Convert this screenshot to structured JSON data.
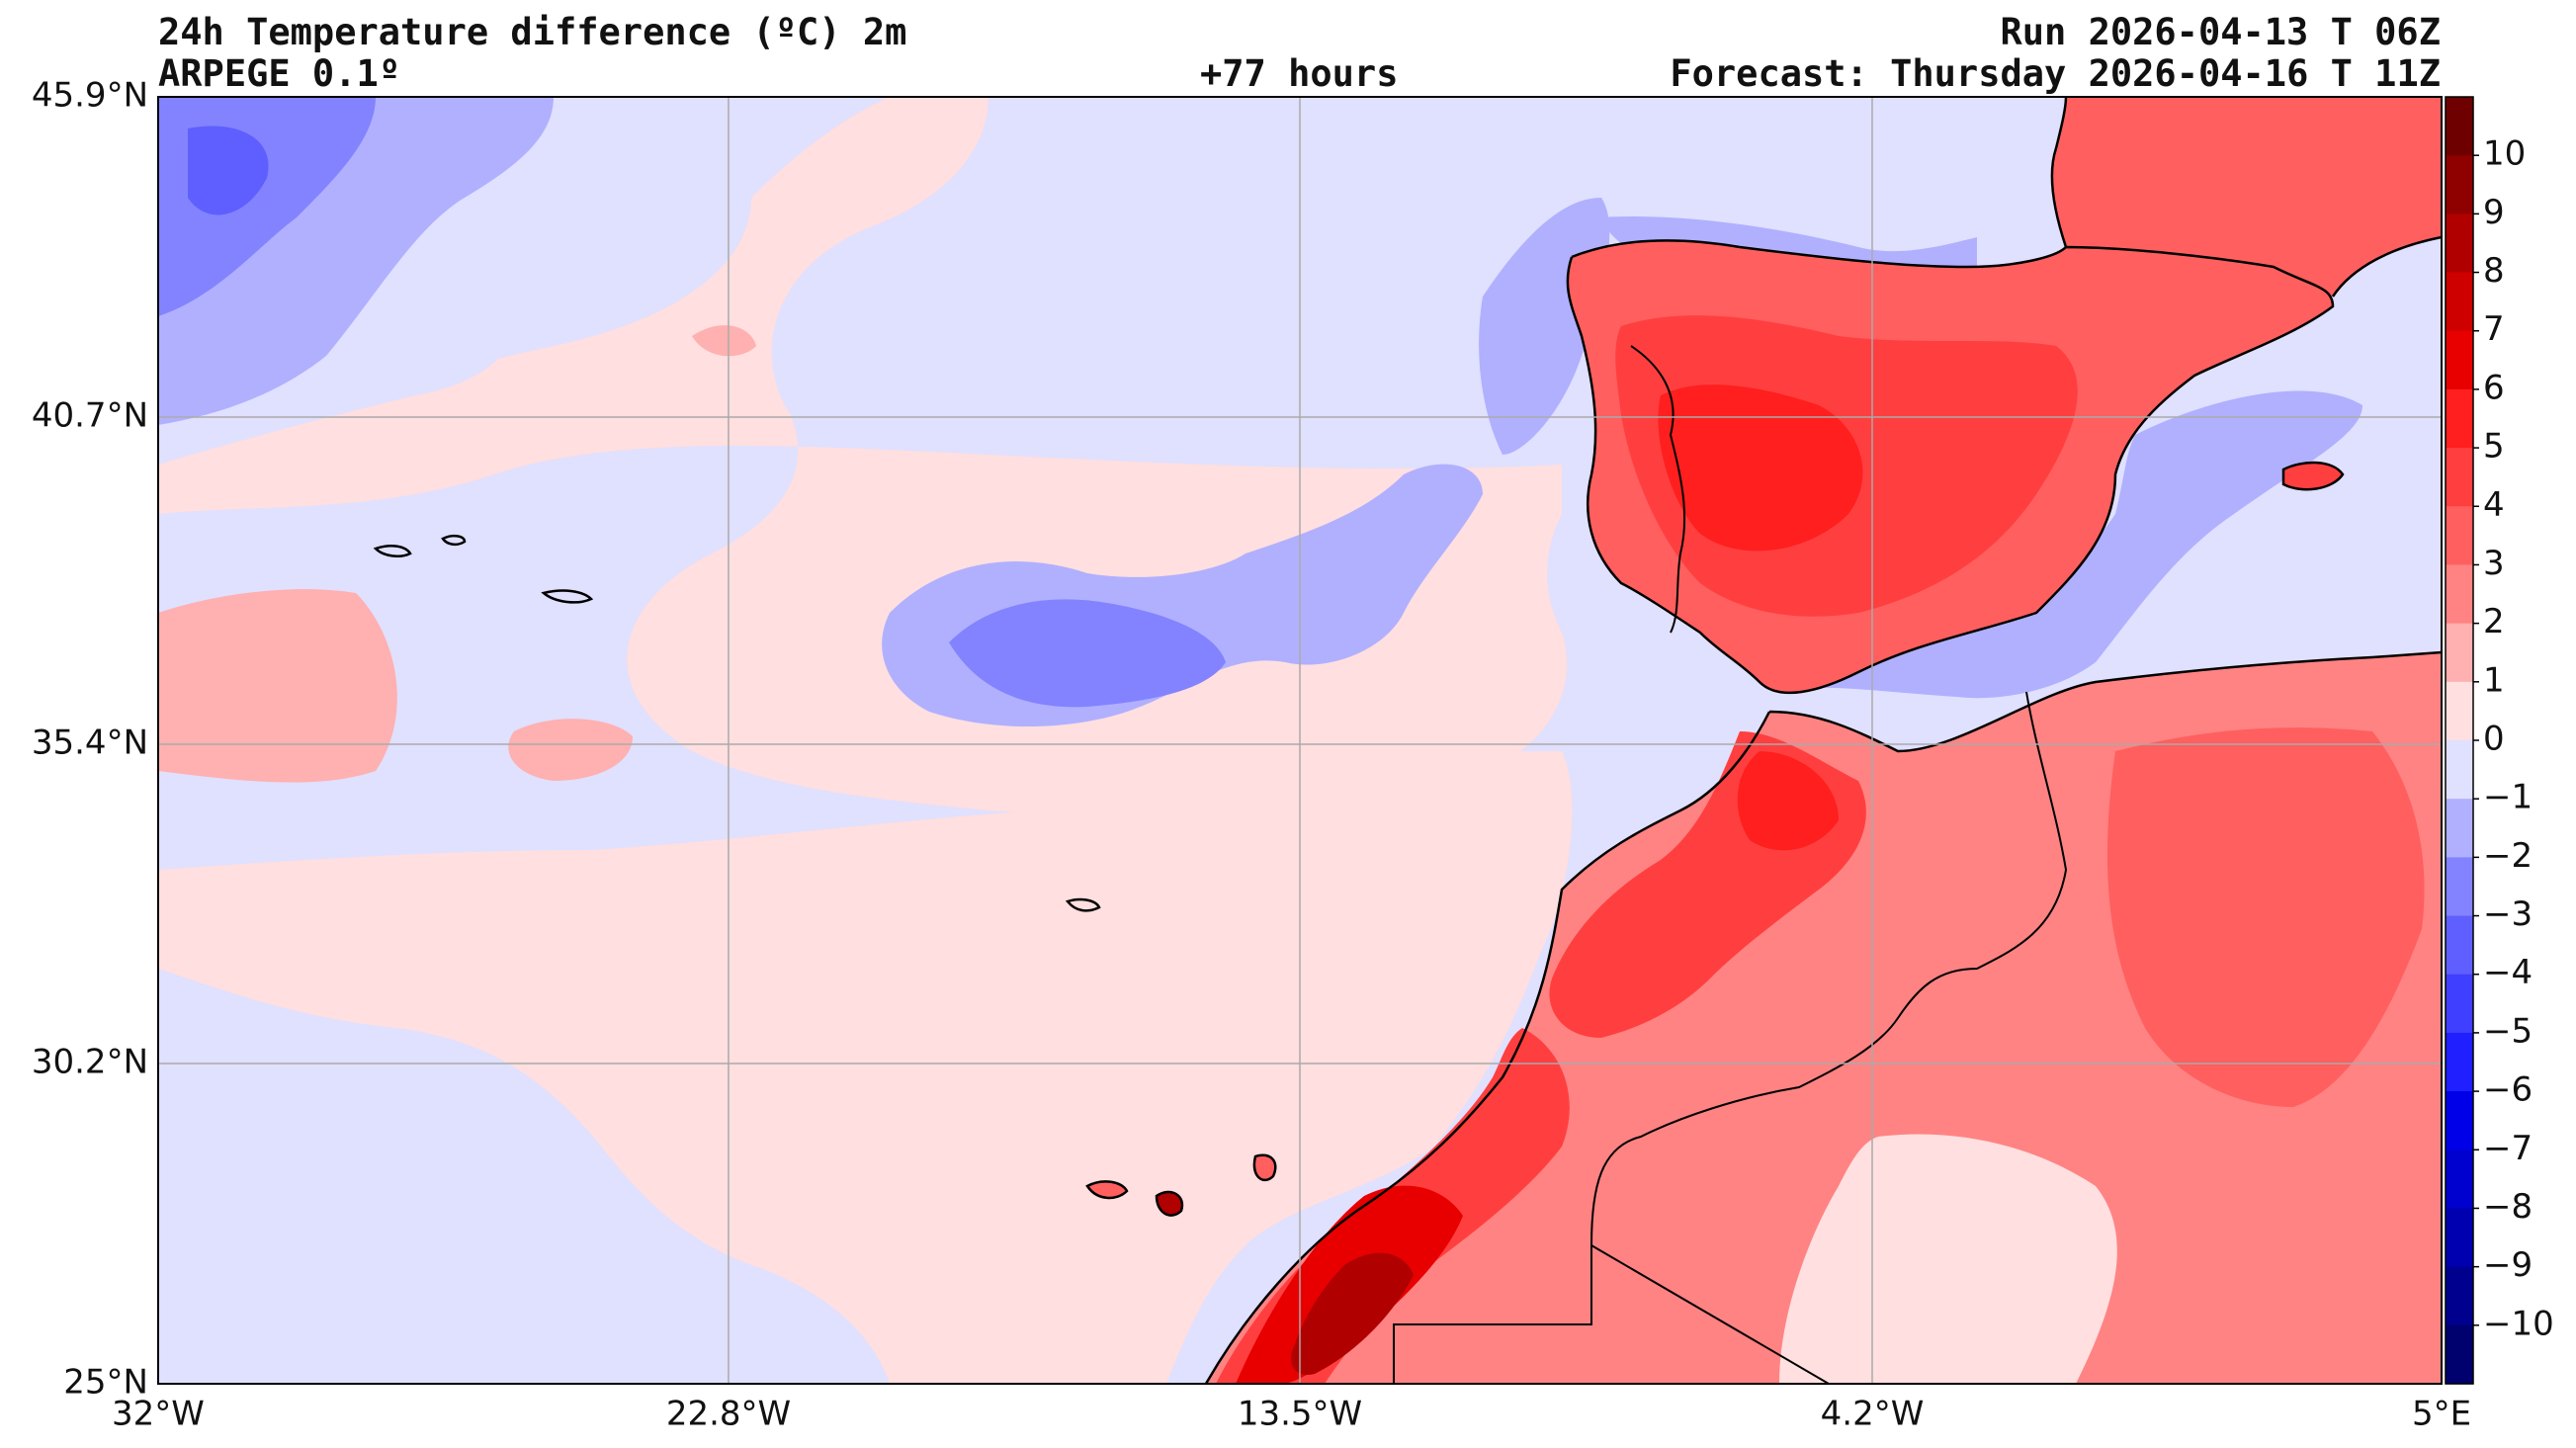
{
  "header": {
    "title": "24h Temperature difference (ºC) 2m",
    "model": "ARPEGE 0.1º",
    "lead_time": "+77 hours",
    "run": "Run 2026-04-13 T 06Z",
    "forecast": "Forecast: Thursday 2026-04-16 T 11Z"
  },
  "axes": {
    "lat_labels": [
      "45.9°N",
      "40.7°N",
      "35.4°N",
      "30.2°N",
      "25°N"
    ],
    "lon_labels": [
      "32°W",
      "22.8°W",
      "13.5°W",
      "4.2°W",
      "5°E"
    ]
  },
  "colorbar": {
    "labels": [
      "10",
      "9",
      "8",
      "7",
      "6",
      "5",
      "4",
      "3",
      "2",
      "1",
      "0",
      "−1",
      "−2",
      "−3",
      "−4",
      "−5",
      "−6",
      "−7",
      "−8",
      "−9",
      "−10"
    ],
    "colors": [
      "#6e0000",
      "#8f0000",
      "#b00000",
      "#cf0000",
      "#e80000",
      "#ff1f1f",
      "#ff3f3f",
      "#ff5f5f",
      "#ff8383",
      "#ffb0b0",
      "#ffdfdf",
      "#e0e0ff",
      "#b0b0ff",
      "#8383ff",
      "#5f5fff",
      "#3f3fff",
      "#1f1fff",
      "#0000e8",
      "#0000cf",
      "#0000b0",
      "#00008f",
      "#00006e"
    ]
  },
  "map_colors": {
    "land_border": "#000000",
    "grid": "#aaaaaa"
  }
}
